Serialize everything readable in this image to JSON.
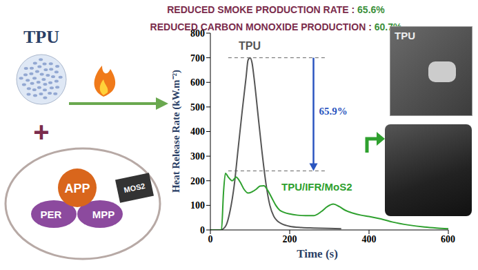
{
  "header": {
    "lines": [
      {
        "text": "REDUCED  SMOKE PRODUCTION RATE :",
        "value": "65.6%"
      },
      {
        "text": "REDUCED CARBON MONOXIDE PRODUCTION :",
        "value": "60.7%"
      }
    ]
  },
  "left": {
    "polymer": "TPU",
    "plus": "+",
    "additives": [
      "APP",
      "PER",
      "MPP",
      "MOS2"
    ]
  },
  "photo_labels": [
    "TPU"
  ],
  "chart_data": {
    "type": "line",
    "x_label": "Time (s)",
    "y_label": "Heat Release Rate (kW.m⁻²)",
    "xlim": [
      0,
      600
    ],
    "xticks": [
      0,
      200,
      400,
      600
    ],
    "ylim": [
      0,
      800
    ],
    "yticks": [
      0,
      100,
      200,
      300,
      400,
      500,
      600,
      700,
      800
    ],
    "grid": false,
    "series": [
      {
        "name": "TPU",
        "color": "#555555",
        "x": [
          0,
          25,
          30,
          40,
          50,
          60,
          70,
          80,
          90,
          95,
          100,
          105,
          110,
          120,
          130,
          140,
          150,
          160,
          170,
          180,
          200,
          230,
          260,
          300,
          330
        ],
        "values": [
          0,
          0,
          2,
          20,
          80,
          180,
          330,
          480,
          620,
          690,
          700,
          680,
          620,
          470,
          320,
          190,
          100,
          55,
          35,
          25,
          15,
          10,
          8,
          6,
          5
        ]
      },
      {
        "name": "TPU/IFR/MoS2",
        "color": "#2ea02e",
        "x": [
          0,
          28,
          33,
          38,
          45,
          55,
          65,
          75,
          85,
          95,
          105,
          115,
          125,
          135,
          145,
          155,
          165,
          175,
          185,
          200,
          220,
          240,
          260,
          280,
          295,
          310,
          325,
          340,
          360,
          380,
          400,
          430,
          460,
          500,
          540,
          570,
          600
        ],
        "values": [
          0,
          0,
          150,
          230,
          215,
          200,
          215,
          195,
          165,
          150,
          155,
          165,
          178,
          180,
          160,
          130,
          100,
          80,
          72,
          65,
          60,
          58,
          58,
          75,
          95,
          105,
          95,
          80,
          68,
          60,
          55,
          45,
          32,
          20,
          12,
          8,
          5
        ]
      }
    ],
    "annotations": [
      {
        "text": "65.9%",
        "from": 700,
        "to": 240,
        "x": [
          45,
          290
        ],
        "arrow_x": 260,
        "color": "#2a55c0"
      }
    ]
  }
}
